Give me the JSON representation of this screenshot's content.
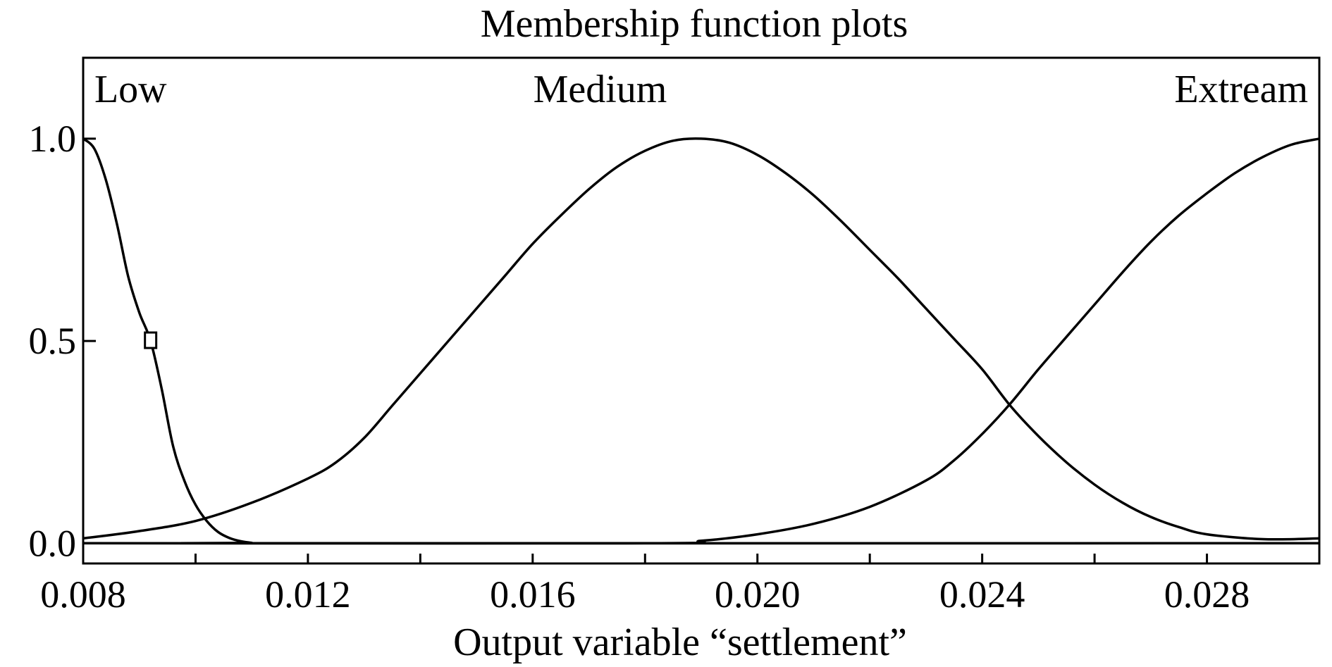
{
  "chart_data": {
    "type": "line",
    "title": "Membership function plots",
    "xlabel": "Output variable “settlement”",
    "ylabel": "",
    "xlim": [
      0.008,
      0.03
    ],
    "ylim": [
      -0.05,
      1.2
    ],
    "x_ticks": [
      {
        "value": 0.008,
        "label": "0.008"
      },
      {
        "value": 0.01,
        "label": ""
      },
      {
        "value": 0.012,
        "label": "0.012"
      },
      {
        "value": 0.014,
        "label": ""
      },
      {
        "value": 0.016,
        "label": "0.016"
      },
      {
        "value": 0.018,
        "label": ""
      },
      {
        "value": 0.02,
        "label": "0.020"
      },
      {
        "value": 0.022,
        "label": ""
      },
      {
        "value": 0.024,
        "label": "0.024"
      },
      {
        "value": 0.026,
        "label": ""
      },
      {
        "value": 0.028,
        "label": "0.028"
      }
    ],
    "y_ticks": [
      {
        "value": 0.0,
        "label": "0.0"
      },
      {
        "value": 0.5,
        "label": "0.5"
      },
      {
        "value": 1.0,
        "label": "1.0"
      }
    ],
    "grid": false,
    "series": [
      {
        "name": "Low",
        "label_anchor": {
          "x": 0.0082,
          "y": 1.09
        },
        "points": [
          [
            0.008,
            1.0
          ],
          [
            0.0082,
            0.975
          ],
          [
            0.0084,
            0.9
          ],
          [
            0.0086,
            0.79
          ],
          [
            0.0088,
            0.66
          ],
          [
            0.009,
            0.57
          ],
          [
            0.0092,
            0.5
          ],
          [
            0.0094,
            0.38
          ],
          [
            0.0096,
            0.24
          ],
          [
            0.0098,
            0.155
          ],
          [
            0.01,
            0.095
          ],
          [
            0.0102,
            0.055
          ],
          [
            0.0104,
            0.028
          ],
          [
            0.0106,
            0.013
          ],
          [
            0.0108,
            0.005
          ],
          [
            0.011,
            0.001
          ],
          [
            0.0112,
            0.0
          ],
          [
            0.03,
            0.0
          ]
        ]
      },
      {
        "name": "Medium",
        "label_anchor": {
          "x": 0.0172,
          "y": 1.09
        },
        "points": [
          [
            0.008,
            0.012
          ],
          [
            0.009,
            0.03
          ],
          [
            0.01,
            0.055
          ],
          [
            0.011,
            0.1
          ],
          [
            0.012,
            0.16
          ],
          [
            0.0125,
            0.2
          ],
          [
            0.013,
            0.26
          ],
          [
            0.0135,
            0.34
          ],
          [
            0.014,
            0.42
          ],
          [
            0.0145,
            0.5
          ],
          [
            0.015,
            0.58
          ],
          [
            0.0155,
            0.66
          ],
          [
            0.016,
            0.74
          ],
          [
            0.0165,
            0.81
          ],
          [
            0.017,
            0.875
          ],
          [
            0.0175,
            0.93
          ],
          [
            0.018,
            0.97
          ],
          [
            0.0185,
            0.995
          ],
          [
            0.019,
            1.0
          ],
          [
            0.0195,
            0.99
          ],
          [
            0.02,
            0.96
          ],
          [
            0.0205,
            0.915
          ],
          [
            0.021,
            0.86
          ],
          [
            0.0215,
            0.795
          ],
          [
            0.022,
            0.725
          ],
          [
            0.0225,
            0.655
          ],
          [
            0.023,
            0.58
          ],
          [
            0.0235,
            0.505
          ],
          [
            0.024,
            0.43
          ],
          [
            0.0245,
            0.34
          ],
          [
            0.025,
            0.265
          ],
          [
            0.0255,
            0.2
          ],
          [
            0.026,
            0.145
          ],
          [
            0.0265,
            0.1
          ],
          [
            0.027,
            0.065
          ],
          [
            0.0275,
            0.04
          ],
          [
            0.028,
            0.022
          ],
          [
            0.029,
            0.01
          ],
          [
            0.03,
            0.012
          ]
        ]
      },
      {
        "name": "Extream",
        "label_anchor": {
          "x": 0.0298,
          "y": 1.09
        },
        "points": [
          [
            0.008,
            0.0
          ],
          [
            0.018,
            0.0
          ],
          [
            0.019,
            0.006
          ],
          [
            0.02,
            0.022
          ],
          [
            0.021,
            0.048
          ],
          [
            0.022,
            0.09
          ],
          [
            0.023,
            0.155
          ],
          [
            0.0235,
            0.205
          ],
          [
            0.024,
            0.27
          ],
          [
            0.0245,
            0.345
          ],
          [
            0.025,
            0.43
          ],
          [
            0.0255,
            0.51
          ],
          [
            0.026,
            0.59
          ],
          [
            0.0265,
            0.67
          ],
          [
            0.027,
            0.745
          ],
          [
            0.0275,
            0.81
          ],
          [
            0.028,
            0.865
          ],
          [
            0.0285,
            0.915
          ],
          [
            0.029,
            0.955
          ],
          [
            0.0295,
            0.985
          ],
          [
            0.03,
            1.0
          ]
        ]
      }
    ],
    "marker": {
      "x": 0.0092,
      "y": 0.5,
      "shape": "square"
    }
  }
}
